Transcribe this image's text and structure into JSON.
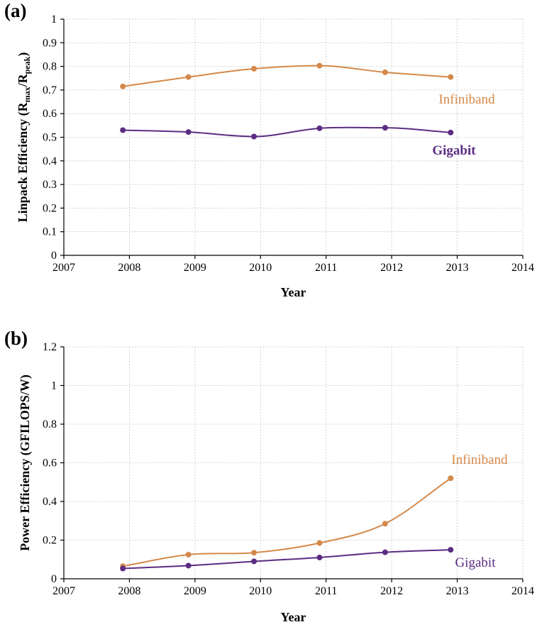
{
  "chart_data": [
    {
      "type": "line",
      "panel_label": "(a)",
      "xlabel": "Year",
      "ylabel": {
        "main": "Linpack Efficiency (R",
        "sub1": "max",
        "mid": "/R",
        "sub2": "peak",
        "end": ")"
      },
      "xlim": [
        2007,
        2014
      ],
      "ylim": [
        0,
        1
      ],
      "x_ticks": [
        "2007",
        "2008",
        "2009",
        "2010",
        "2011",
        "2012",
        "2013",
        "2014"
      ],
      "y_ticks": [
        "0",
        "0.1",
        "0.2",
        "0.3",
        "0.4",
        "0.5",
        "0.6",
        "0.7",
        "0.8",
        "0.9",
        "1"
      ],
      "grid": true,
      "series": [
        {
          "name": "Infiniband",
          "color": "#d4894a",
          "x": [
            2007.9,
            2008.9,
            2009.9,
            2010.9,
            2011.9,
            2012.9
          ],
          "values": [
            0.715,
            0.755,
            0.79,
            0.803,
            0.775,
            0.755
          ]
        },
        {
          "name": "Gigabit",
          "color": "#5b2d82",
          "x": [
            2007.9,
            2008.9,
            2009.9,
            2010.9,
            2011.9,
            2012.9
          ],
          "values": [
            0.53,
            0.522,
            0.503,
            0.538,
            0.54,
            0.52
          ]
        }
      ]
    },
    {
      "type": "line",
      "panel_label": "(b)",
      "xlabel": "Year",
      "ylabel": "Power Efficiency (GFILOPS/W)",
      "xlim": [
        2007,
        2014
      ],
      "ylim": [
        0,
        1.2
      ],
      "x_ticks": [
        "2007",
        "2008",
        "2009",
        "2010",
        "2011",
        "2012",
        "2013",
        "2014"
      ],
      "y_ticks": [
        "0",
        "0.2",
        "0.4",
        "0.6",
        "0.8",
        "1",
        "1.2"
      ],
      "grid": true,
      "series": [
        {
          "name": "Infiniband",
          "color": "#d4894a",
          "x": [
            2007.9,
            2008.9,
            2009.9,
            2010.9,
            2011.9,
            2012.9
          ],
          "values": [
            0.065,
            0.125,
            0.135,
            0.185,
            0.285,
            0.52
          ]
        },
        {
          "name": "Gigabit",
          "color": "#5b2d82",
          "x": [
            2007.9,
            2008.9,
            2009.9,
            2010.9,
            2011.9,
            2012.9
          ],
          "values": [
            0.053,
            0.068,
            0.09,
            0.11,
            0.137,
            0.15
          ]
        }
      ]
    }
  ]
}
